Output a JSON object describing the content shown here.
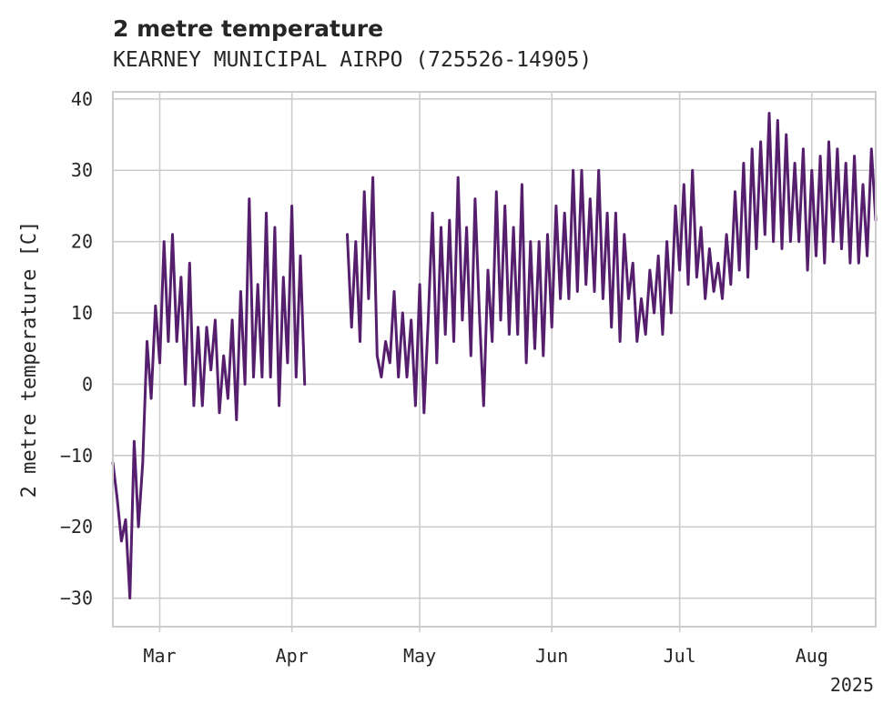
{
  "chart_data": {
    "type": "line",
    "title": "2 metre temperature",
    "subtitle": "KEARNEY MUNICIPAL AIRPO (725526-14905)",
    "xlabel": "",
    "ylabel": "2 metre temperature [C]",
    "ylim": [
      -34,
      41
    ],
    "y_ticks": [
      -30,
      -20,
      -10,
      0,
      10,
      20,
      30,
      40
    ],
    "xlim": [
      "2025-02-18",
      "2025-08-16"
    ],
    "x_ticks": [
      {
        "date": "2025-03-01",
        "label": "Mar"
      },
      {
        "date": "2025-04-01",
        "label": "Apr"
      },
      {
        "date": "2025-05-01",
        "label": "May"
      },
      {
        "date": "2025-06-01",
        "label": "Jun"
      },
      {
        "date": "2025-07-01",
        "label": "Jul"
      },
      {
        "date": "2025-08-01",
        "label": "Aug"
      }
    ],
    "x_offset_label": "2025",
    "grid": true,
    "line_color": "#551f6e",
    "series": [
      {
        "segments": [
          [
            [
              "2025-02-18",
              -11
            ],
            [
              "2025-02-19",
              -16
            ],
            [
              "2025-02-20",
              -22
            ],
            [
              "2025-02-21",
              -19
            ],
            [
              "2025-02-22",
              -30
            ],
            [
              "2025-02-23",
              -8
            ],
            [
              "2025-02-24",
              -20
            ],
            [
              "2025-02-25",
              -11
            ],
            [
              "2025-02-26",
              6
            ],
            [
              "2025-02-27",
              -2
            ],
            [
              "2025-02-28",
              11
            ],
            [
              "2025-03-01",
              3
            ],
            [
              "2025-03-02",
              20
            ],
            [
              "2025-03-03",
              6
            ],
            [
              "2025-03-04",
              21
            ],
            [
              "2025-03-05",
              6
            ],
            [
              "2025-03-06",
              15
            ],
            [
              "2025-03-07",
              0
            ],
            [
              "2025-03-08",
              17
            ],
            [
              "2025-03-09",
              -3
            ],
            [
              "2025-03-10",
              8
            ],
            [
              "2025-03-11",
              -3
            ],
            [
              "2025-03-12",
              8
            ],
            [
              "2025-03-13",
              2
            ],
            [
              "2025-03-14",
              9
            ],
            [
              "2025-03-15",
              -4
            ],
            [
              "2025-03-16",
              4
            ],
            [
              "2025-03-17",
              -2
            ],
            [
              "2025-03-18",
              9
            ],
            [
              "2025-03-19",
              -5
            ],
            [
              "2025-03-20",
              13
            ],
            [
              "2025-03-21",
              0
            ],
            [
              "2025-03-22",
              26
            ],
            [
              "2025-03-23",
              1
            ],
            [
              "2025-03-24",
              14
            ],
            [
              "2025-03-25",
              1
            ],
            [
              "2025-03-26",
              24
            ],
            [
              "2025-03-27",
              1
            ],
            [
              "2025-03-28",
              22
            ],
            [
              "2025-03-29",
              -3
            ],
            [
              "2025-03-30",
              15
            ],
            [
              "2025-03-31",
              3
            ],
            [
              "2025-04-01",
              25
            ],
            [
              "2025-04-02",
              1
            ],
            [
              "2025-04-03",
              18
            ],
            [
              "2025-04-04",
              0
            ]
          ],
          [
            [
              "2025-04-14",
              21
            ],
            [
              "2025-04-15",
              8
            ],
            [
              "2025-04-16",
              20
            ],
            [
              "2025-04-17",
              6
            ],
            [
              "2025-04-18",
              27
            ],
            [
              "2025-04-19",
              12
            ],
            [
              "2025-04-20",
              29
            ],
            [
              "2025-04-21",
              4
            ],
            [
              "2025-04-22",
              1
            ],
            [
              "2025-04-23",
              6
            ],
            [
              "2025-04-24",
              3
            ],
            [
              "2025-04-25",
              13
            ],
            [
              "2025-04-26",
              1
            ],
            [
              "2025-04-27",
              10
            ],
            [
              "2025-04-28",
              1
            ],
            [
              "2025-04-29",
              9
            ],
            [
              "2025-04-30",
              -3
            ],
            [
              "2025-05-01",
              14
            ],
            [
              "2025-05-02",
              -4
            ],
            [
              "2025-05-03",
              9
            ],
            [
              "2025-05-04",
              24
            ],
            [
              "2025-05-05",
              3
            ],
            [
              "2025-05-06",
              22
            ],
            [
              "2025-05-07",
              7
            ],
            [
              "2025-05-08",
              23
            ],
            [
              "2025-05-09",
              6
            ],
            [
              "2025-05-10",
              29
            ],
            [
              "2025-05-11",
              9
            ],
            [
              "2025-05-12",
              22
            ],
            [
              "2025-05-13",
              4
            ],
            [
              "2025-05-14",
              26
            ],
            [
              "2025-05-15",
              10
            ],
            [
              "2025-05-16",
              -3
            ],
            [
              "2025-05-17",
              16
            ],
            [
              "2025-05-18",
              6
            ],
            [
              "2025-05-19",
              27
            ],
            [
              "2025-05-20",
              9
            ],
            [
              "2025-05-21",
              25
            ],
            [
              "2025-05-22",
              7
            ],
            [
              "2025-05-23",
              22
            ],
            [
              "2025-05-24",
              7
            ],
            [
              "2025-05-25",
              28
            ],
            [
              "2025-05-26",
              3
            ],
            [
              "2025-05-27",
              20
            ],
            [
              "2025-05-28",
              5
            ],
            [
              "2025-05-29",
              20
            ],
            [
              "2025-05-30",
              4
            ],
            [
              "2025-05-31",
              21
            ],
            [
              "2025-06-01",
              8
            ],
            [
              "2025-06-02",
              25
            ],
            [
              "2025-06-03",
              12
            ],
            [
              "2025-06-04",
              24
            ],
            [
              "2025-06-05",
              12
            ],
            [
              "2025-06-06",
              30
            ],
            [
              "2025-06-07",
              13
            ],
            [
              "2025-06-08",
              30
            ],
            [
              "2025-06-09",
              14
            ],
            [
              "2025-06-10",
              26
            ],
            [
              "2025-06-11",
              13
            ],
            [
              "2025-06-12",
              30
            ],
            [
              "2025-06-13",
              12
            ],
            [
              "2025-06-14",
              24
            ],
            [
              "2025-06-15",
              8
            ],
            [
              "2025-06-16",
              24
            ],
            [
              "2025-06-17",
              6
            ],
            [
              "2025-06-18",
              21
            ],
            [
              "2025-06-19",
              12
            ],
            [
              "2025-06-20",
              17
            ],
            [
              "2025-06-21",
              6
            ],
            [
              "2025-06-22",
              12
            ],
            [
              "2025-06-23",
              7
            ],
            [
              "2025-06-24",
              16
            ],
            [
              "2025-06-25",
              10
            ],
            [
              "2025-06-26",
              18
            ],
            [
              "2025-06-27",
              7
            ],
            [
              "2025-06-28",
              20
            ],
            [
              "2025-06-29",
              10
            ],
            [
              "2025-06-30",
              25
            ],
            [
              "2025-07-01",
              16
            ],
            [
              "2025-07-02",
              28
            ],
            [
              "2025-07-03",
              14
            ],
            [
              "2025-07-04",
              30
            ],
            [
              "2025-07-05",
              15
            ],
            [
              "2025-07-06",
              22
            ],
            [
              "2025-07-07",
              12
            ],
            [
              "2025-07-08",
              19
            ],
            [
              "2025-07-09",
              13
            ],
            [
              "2025-07-10",
              17
            ],
            [
              "2025-07-11",
              12
            ],
            [
              "2025-07-12",
              21
            ],
            [
              "2025-07-13",
              14
            ],
            [
              "2025-07-14",
              27
            ],
            [
              "2025-07-15",
              16
            ],
            [
              "2025-07-16",
              31
            ],
            [
              "2025-07-17",
              15
            ],
            [
              "2025-07-18",
              33
            ],
            [
              "2025-07-19",
              19
            ],
            [
              "2025-07-20",
              34
            ],
            [
              "2025-07-21",
              21
            ],
            [
              "2025-07-22",
              38
            ],
            [
              "2025-07-23",
              20
            ],
            [
              "2025-07-24",
              37
            ],
            [
              "2025-07-25",
              19
            ],
            [
              "2025-07-26",
              35
            ],
            [
              "2025-07-27",
              20
            ],
            [
              "2025-07-28",
              31
            ],
            [
              "2025-07-29",
              20
            ],
            [
              "2025-07-30",
              33
            ],
            [
              "2025-07-31",
              16
            ],
            [
              "2025-08-01",
              30
            ],
            [
              "2025-08-02",
              18
            ],
            [
              "2025-08-03",
              32
            ],
            [
              "2025-08-04",
              17
            ],
            [
              "2025-08-05",
              34
            ],
            [
              "2025-08-06",
              20
            ],
            [
              "2025-08-07",
              33
            ],
            [
              "2025-08-08",
              19
            ],
            [
              "2025-08-09",
              31
            ],
            [
              "2025-08-10",
              17
            ],
            [
              "2025-08-11",
              32
            ],
            [
              "2025-08-12",
              17
            ],
            [
              "2025-08-13",
              28
            ],
            [
              "2025-08-14",
              18
            ],
            [
              "2025-08-15",
              33
            ],
            [
              "2025-08-16",
              23
            ]
          ]
        ]
      }
    ]
  }
}
